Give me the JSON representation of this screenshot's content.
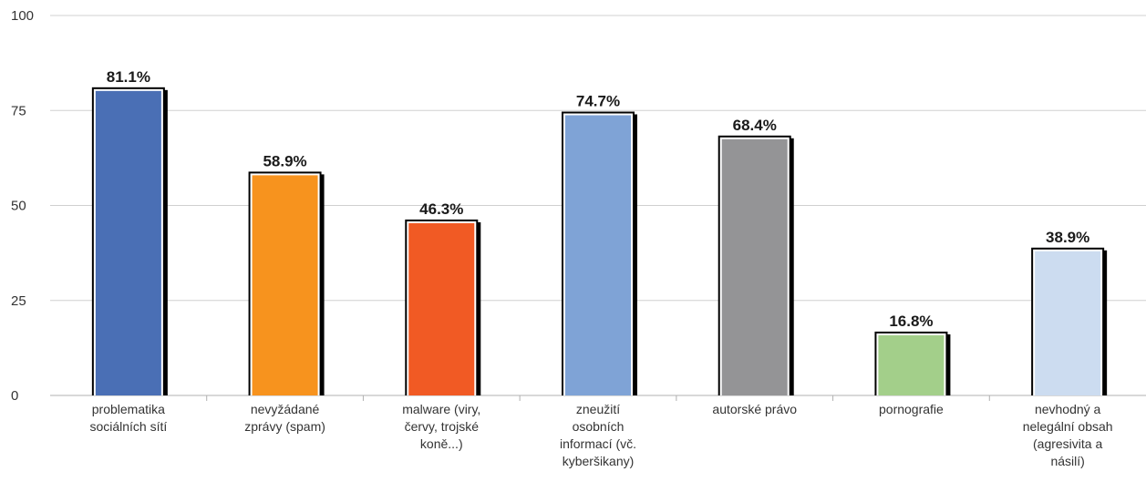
{
  "chart_data": {
    "type": "bar",
    "title": "",
    "xlabel": "",
    "ylabel": "",
    "ylim": [
      0,
      100
    ],
    "yticks": [
      "0",
      "25",
      "50",
      "75",
      "100"
    ],
    "grid": true,
    "legend": "none",
    "categories": [
      [
        "problematika",
        "sociálních sítí"
      ],
      [
        "nevyžádané",
        "zprávy (spam)"
      ],
      [
        "malware (viry,",
        "červy, trojské",
        "koně...)"
      ],
      [
        "zneužití",
        "osobních",
        "informací (vč.",
        "kyberšikany)"
      ],
      [
        "autorské právo"
      ],
      [
        "pornografie"
      ],
      [
        "nevhodný a",
        "nelegální obsah",
        "(agresivita a",
        "násilí)"
      ]
    ],
    "values": [
      81.1,
      58.9,
      46.3,
      74.7,
      68.4,
      16.8,
      38.9
    ],
    "value_labels": [
      "81.1%",
      "58.9%",
      "46.3%",
      "74.7%",
      "68.4%",
      "16.8%",
      "38.9%"
    ],
    "colors": [
      "#4a6fb5",
      "#f7931e",
      "#f15a24",
      "#7fa3d6",
      "#949496",
      "#a3cf8a",
      "#ccdcf0"
    ]
  }
}
